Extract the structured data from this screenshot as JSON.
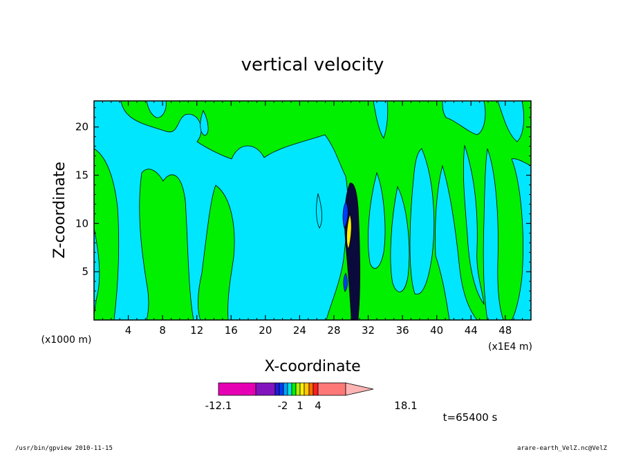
{
  "chart_data": {
    "type": "heatmap",
    "title": "vertical velocity",
    "xlabel": "X-coordinate",
    "ylabel": "Z-coordinate",
    "x_unit_left": "(x1000 m)",
    "x_unit_right": "(x1E4 m)",
    "xlim": [
      0,
      51
    ],
    "ylim": [
      0,
      22.7
    ],
    "x_ticks": [
      4,
      8,
      12,
      16,
      20,
      24,
      28,
      32,
      36,
      40,
      44,
      48
    ],
    "y_ticks": [
      5,
      10,
      15,
      20
    ],
    "colorbar": {
      "colors": [
        "#e600b4",
        "#8214be",
        "#1e1edc",
        "#003cff",
        "#00a0ff",
        "#00e6e6",
        "#00f000",
        "#b4f000",
        "#fff000",
        "#ffc800",
        "#ff6e00",
        "#ff1e1e",
        "#ff7878",
        "#ffb4b4"
      ],
      "tick_labels": [
        "-12.1",
        "-2",
        "1",
        "4",
        "18.1"
      ],
      "tick_values": [
        -12.1,
        -2,
        1,
        4,
        18.1
      ]
    },
    "time_label": "t=65400 s"
  },
  "footer": {
    "left": "/usr/bin/gpview   2010-11-15",
    "right": "arare-earth_VelZ.nc@VelZ"
  }
}
